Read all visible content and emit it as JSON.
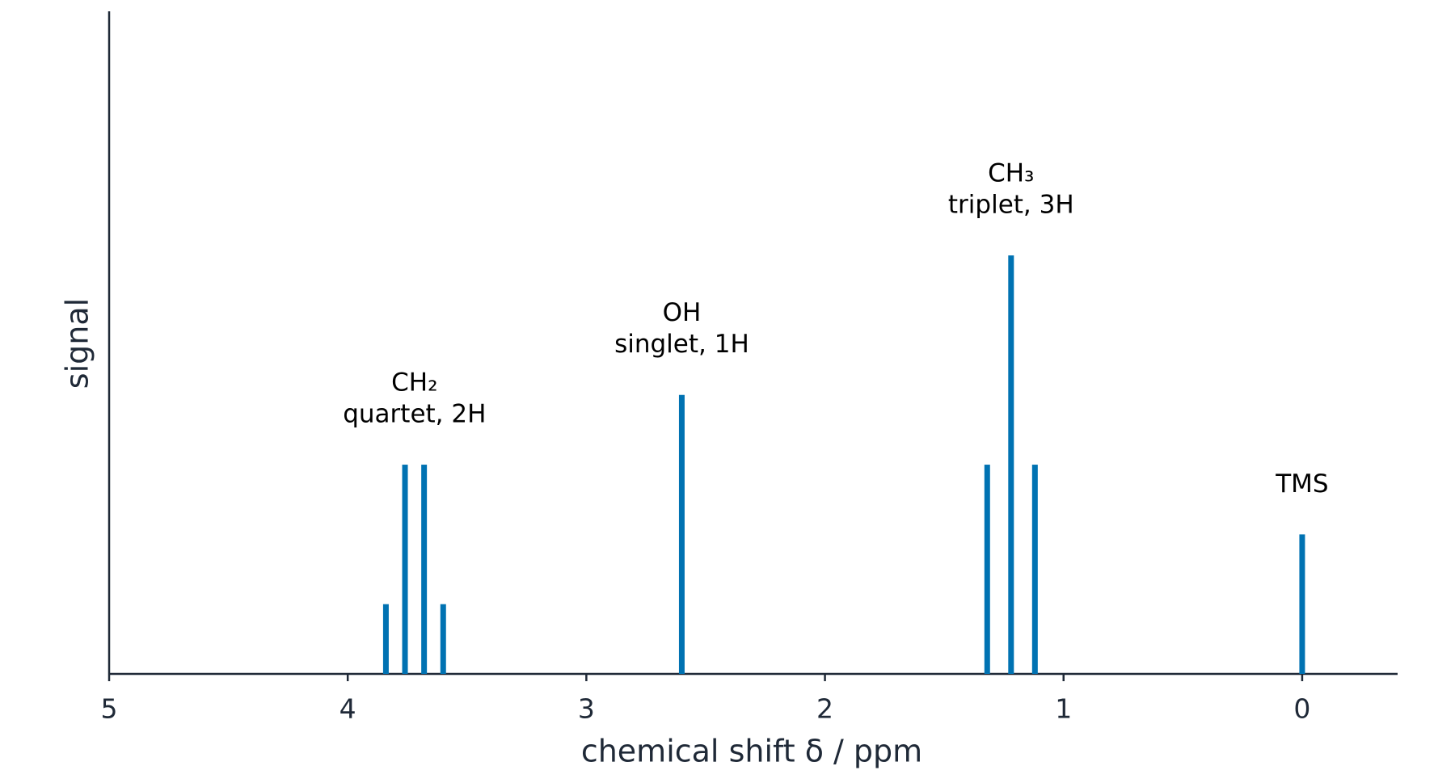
{
  "chart_data": {
    "type": "stick",
    "xlabel": "chemical shift δ / ppm",
    "ylabel": "signal",
    "xlim": [
      5,
      -0.4
    ],
    "xticks": [
      5,
      4,
      3,
      2,
      1,
      0
    ],
    "ylim": [
      0,
      9.5
    ],
    "color": "#0072b2",
    "series": [
      {
        "name": "CH₂",
        "annotation": "quartet, 2H",
        "x": [
          3.84,
          3.76,
          3.68,
          3.6
        ],
        "values": [
          1,
          3,
          3,
          1
        ]
      },
      {
        "name": "OH",
        "annotation": "singlet, 1H",
        "x": [
          2.6
        ],
        "values": [
          4
        ]
      },
      {
        "name": "CH₃",
        "annotation": "triplet, 3H",
        "x": [
          1.32,
          1.22,
          1.12
        ],
        "values": [
          3,
          6,
          3
        ]
      },
      {
        "name": "TMS",
        "x": [
          0
        ],
        "values": [
          2
        ]
      }
    ]
  }
}
